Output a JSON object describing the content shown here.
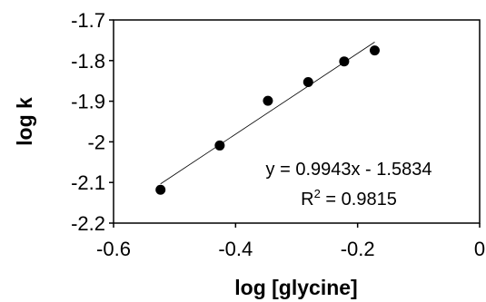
{
  "chart_data": {
    "type": "scatter",
    "xlabel": "log [glycine]",
    "ylabel": "log k",
    "xlim": [
      -0.6,
      0
    ],
    "ylim": [
      -2.2,
      -1.7
    ],
    "x_ticks": [
      -0.6,
      -0.4,
      -0.2,
      0
    ],
    "x_tick_labels": [
      "-0.6",
      "-0.4",
      "-0.2",
      "0"
    ],
    "y_ticks": [
      -1.7,
      -1.8,
      -1.9,
      -2,
      -2.1,
      -2.2
    ],
    "y_tick_labels": [
      "-1.7",
      "-1.8",
      "-1.9",
      "-2",
      "-2.1",
      "-2.2"
    ],
    "grid": false,
    "series": [
      {
        "points": [
          {
            "x": -0.523,
            "y": -2.118
          },
          {
            "x": -0.426,
            "y": -2.009
          },
          {
            "x": -0.347,
            "y": -1.899
          },
          {
            "x": -0.281,
            "y": -1.853
          },
          {
            "x": -0.222,
            "y": -1.802
          },
          {
            "x": -0.172,
            "y": -1.775
          }
        ]
      }
    ],
    "trendline": {
      "slope": 0.9943,
      "intercept": -1.5834,
      "x_range": [
        -0.523,
        -0.172
      ]
    },
    "annotations": {
      "equation": "y = 0.9943x - 1.5834",
      "r2_prefix": "R",
      "r2_sup": "2",
      "r2_value": " = 0.9815"
    }
  }
}
